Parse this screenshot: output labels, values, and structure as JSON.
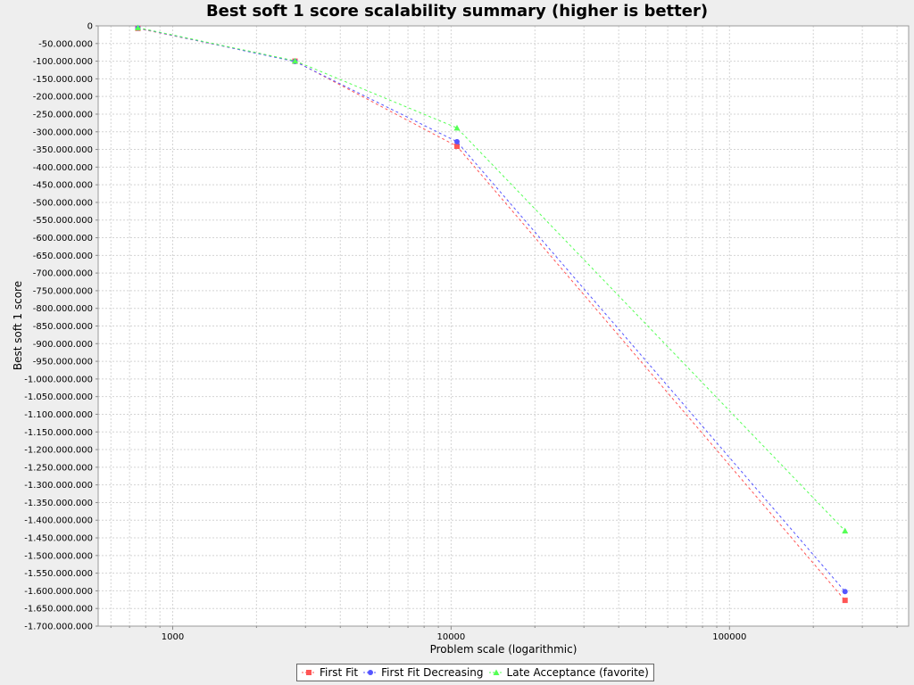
{
  "chart_data": {
    "type": "scatter",
    "title": "Best soft 1 score scalability summary (higher is better)",
    "xlabel": "Problem scale (logarithmic)",
    "ylabel": "Best soft 1 score",
    "xscale": "log",
    "xlim": [
      540,
      440000
    ],
    "ylim": [
      -1700000000,
      0
    ],
    "grid": true,
    "legend_position": "bottom",
    "x_ticks": [
      {
        "value": 1000,
        "label": "1000"
      },
      {
        "value": 10000,
        "label": "10000"
      },
      {
        "value": 100000,
        "label": "100000"
      }
    ],
    "y_ticks": [
      {
        "value": 0,
        "label": "0"
      },
      {
        "value": -50000000,
        "label": "-50.000.000"
      },
      {
        "value": -100000000,
        "label": "-100.000.000"
      },
      {
        "value": -150000000,
        "label": "-150.000.000"
      },
      {
        "value": -200000000,
        "label": "-200.000.000"
      },
      {
        "value": -250000000,
        "label": "-250.000.000"
      },
      {
        "value": -300000000,
        "label": "-300.000.000"
      },
      {
        "value": -350000000,
        "label": "-350.000.000"
      },
      {
        "value": -400000000,
        "label": "-400.000.000"
      },
      {
        "value": -450000000,
        "label": "-450.000.000"
      },
      {
        "value": -500000000,
        "label": "-500.000.000"
      },
      {
        "value": -550000000,
        "label": "-550.000.000"
      },
      {
        "value": -600000000,
        "label": "-600.000.000"
      },
      {
        "value": -650000000,
        "label": "-650.000.000"
      },
      {
        "value": -700000000,
        "label": "-700.000.000"
      },
      {
        "value": -750000000,
        "label": "-750.000.000"
      },
      {
        "value": -800000000,
        "label": "-800.000.000"
      },
      {
        "value": -850000000,
        "label": "-850.000.000"
      },
      {
        "value": -900000000,
        "label": "-900.000.000"
      },
      {
        "value": -950000000,
        "label": "-950.000.000"
      },
      {
        "value": -1000000000,
        "label": "-1.000.000.000"
      },
      {
        "value": -1050000000,
        "label": "-1.050.000.000"
      },
      {
        "value": -1100000000,
        "label": "-1.100.000.000"
      },
      {
        "value": -1150000000,
        "label": "-1.150.000.000"
      },
      {
        "value": -1200000000,
        "label": "-1.200.000.000"
      },
      {
        "value": -1250000000,
        "label": "-1.250.000.000"
      },
      {
        "value": -1300000000,
        "label": "-1.300.000.000"
      },
      {
        "value": -1350000000,
        "label": "-1.350.000.000"
      },
      {
        "value": -1400000000,
        "label": "-1.400.000.000"
      },
      {
        "value": -1450000000,
        "label": "-1.450.000.000"
      },
      {
        "value": -1500000000,
        "label": "-1.500.000.000"
      },
      {
        "value": -1550000000,
        "label": "-1.550.000.000"
      },
      {
        "value": -1600000000,
        "label": "-1.600.000.000"
      },
      {
        "value": -1650000000,
        "label": "-1.650.000.000"
      },
      {
        "value": -1700000000,
        "label": "-1.700.000.000"
      }
    ],
    "series": [
      {
        "name": "First Fit",
        "color": "#ff5555",
        "marker": "square",
        "points": [
          {
            "x": 750,
            "y": -7000000
          },
          {
            "x": 2750,
            "y": -100000000
          },
          {
            "x": 10500,
            "y": -341000000
          },
          {
            "x": 260000,
            "y": -1627000000
          }
        ]
      },
      {
        "name": "First Fit Decreasing",
        "color": "#5555ff",
        "marker": "circle",
        "points": [
          {
            "x": 750,
            "y": -6000000
          },
          {
            "x": 2750,
            "y": -101000000
          },
          {
            "x": 10500,
            "y": -328000000
          },
          {
            "x": 260000,
            "y": -1602000000
          }
        ]
      },
      {
        "name": "Late Acceptance (favorite)",
        "color": "#55ff55",
        "marker": "triangle",
        "points": [
          {
            "x": 750,
            "y": -5000000
          },
          {
            "x": 2750,
            "y": -99000000
          },
          {
            "x": 10500,
            "y": -289000000
          },
          {
            "x": 260000,
            "y": -1430000000
          }
        ]
      }
    ]
  }
}
